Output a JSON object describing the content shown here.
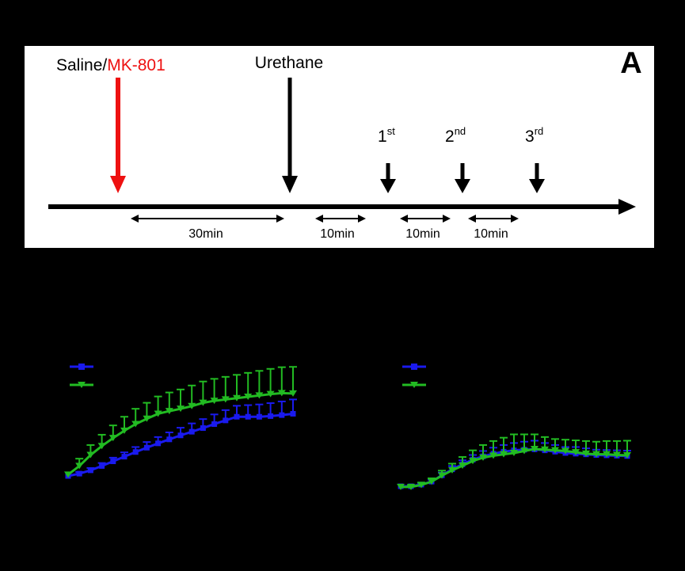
{
  "panel_a": {
    "letter": "A",
    "injection_label_saline": "Saline/",
    "injection_label_drug": "MK-801",
    "anesthetic_label": "Urethane",
    "recordings": [
      {
        "num": "1",
        "suffix": "st"
      },
      {
        "num": "2",
        "suffix": "nd"
      },
      {
        "num": "3",
        "suffix": "rd"
      }
    ],
    "intervals": [
      "30min",
      "10min",
      "10min",
      "10min"
    ],
    "colors": {
      "drug": "#ee1111",
      "text": "#000000"
    }
  },
  "chart_data": [
    {
      "type": "line",
      "title": "",
      "xlabel": "",
      "ylabel": "",
      "x": [
        1,
        2,
        3,
        4,
        5,
        6,
        7,
        8,
        9,
        10,
        11,
        12,
        13,
        14,
        15,
        16,
        17,
        18,
        19,
        20,
        21
      ],
      "series": [
        {
          "color": "#1a1aee",
          "marker": "square",
          "values": [
            0,
            0.07,
            0.17,
            0.3,
            0.44,
            0.58,
            0.72,
            0.85,
            0.98,
            1.1,
            1.22,
            1.33,
            1.44,
            1.56,
            1.67,
            1.78,
            1.78,
            1.78,
            1.8,
            1.83,
            1.87
          ],
          "errors": [
            0,
            0.05,
            0.07,
            0.09,
            0.11,
            0.13,
            0.15,
            0.17,
            0.19,
            0.21,
            0.23,
            0.25,
            0.27,
            0.29,
            0.31,
            0.33,
            0.35,
            0.37,
            0.39,
            0.41,
            0.43
          ]
        },
        {
          "color": "#22bb22",
          "marker": "triangle-down",
          "values": [
            0.04,
            0.3,
            0.63,
            0.9,
            1.14,
            1.36,
            1.56,
            1.72,
            1.87,
            1.95,
            2.02,
            2.1,
            2.2,
            2.26,
            2.3,
            2.34,
            2.38,
            2.42,
            2.46,
            2.49,
            2.48
          ],
          "errors": [
            0,
            0.22,
            0.3,
            0.34,
            0.38,
            0.42,
            0.46,
            0.48,
            0.52,
            0.56,
            0.58,
            0.62,
            0.64,
            0.66,
            0.68,
            0.7,
            0.72,
            0.74,
            0.76,
            0.78,
            0.8
          ]
        }
      ],
      "legend_placement": "top-left"
    },
    {
      "type": "line",
      "title": "",
      "xlabel": "",
      "ylabel": "",
      "x": [
        1,
        2,
        3,
        4,
        5,
        6,
        7,
        8,
        9,
        10,
        11,
        12,
        13,
        14,
        15,
        16,
        17,
        18,
        19,
        20,
        21,
        22,
        23
      ],
      "series": [
        {
          "color": "#1a1aee",
          "marker": "square",
          "values": [
            0,
            0,
            0.05,
            0.14,
            0.33,
            0.51,
            0.66,
            0.8,
            0.9,
            0.98,
            1.04,
            1.08,
            1.1,
            1.11,
            1.08,
            1.04,
            1.0,
            0.98,
            0.96,
            0.94,
            0.93,
            0.92,
            0.91
          ],
          "errors": [
            0,
            0.03,
            0.04,
            0.06,
            0.08,
            0.1,
            0.12,
            0.14,
            0.16,
            0.18,
            0.2,
            0.22,
            0.24,
            0.26,
            0.22,
            0.2,
            0.18,
            0.2,
            0.18,
            0.16,
            0.16,
            0.16,
            0.16
          ]
        },
        {
          "color": "#22bb22",
          "marker": "triangle-down",
          "values": [
            -0.02,
            -0.02,
            0.04,
            0.14,
            0.32,
            0.48,
            0.62,
            0.76,
            0.86,
            0.92,
            0.96,
            1.0,
            1.06,
            1.12,
            1.1,
            1.08,
            1.06,
            1.02,
            0.98,
            0.96,
            0.96,
            0.94,
            0.93
          ],
          "errors": [
            0,
            0.04,
            0.07,
            0.1,
            0.15,
            0.2,
            0.26,
            0.32,
            0.38,
            0.44,
            0.5,
            0.56,
            0.5,
            0.44,
            0.38,
            0.34,
            0.34,
            0.36,
            0.38,
            0.38,
            0.4,
            0.42,
            0.44
          ]
        }
      ],
      "legend_placement": "top-left"
    }
  ]
}
